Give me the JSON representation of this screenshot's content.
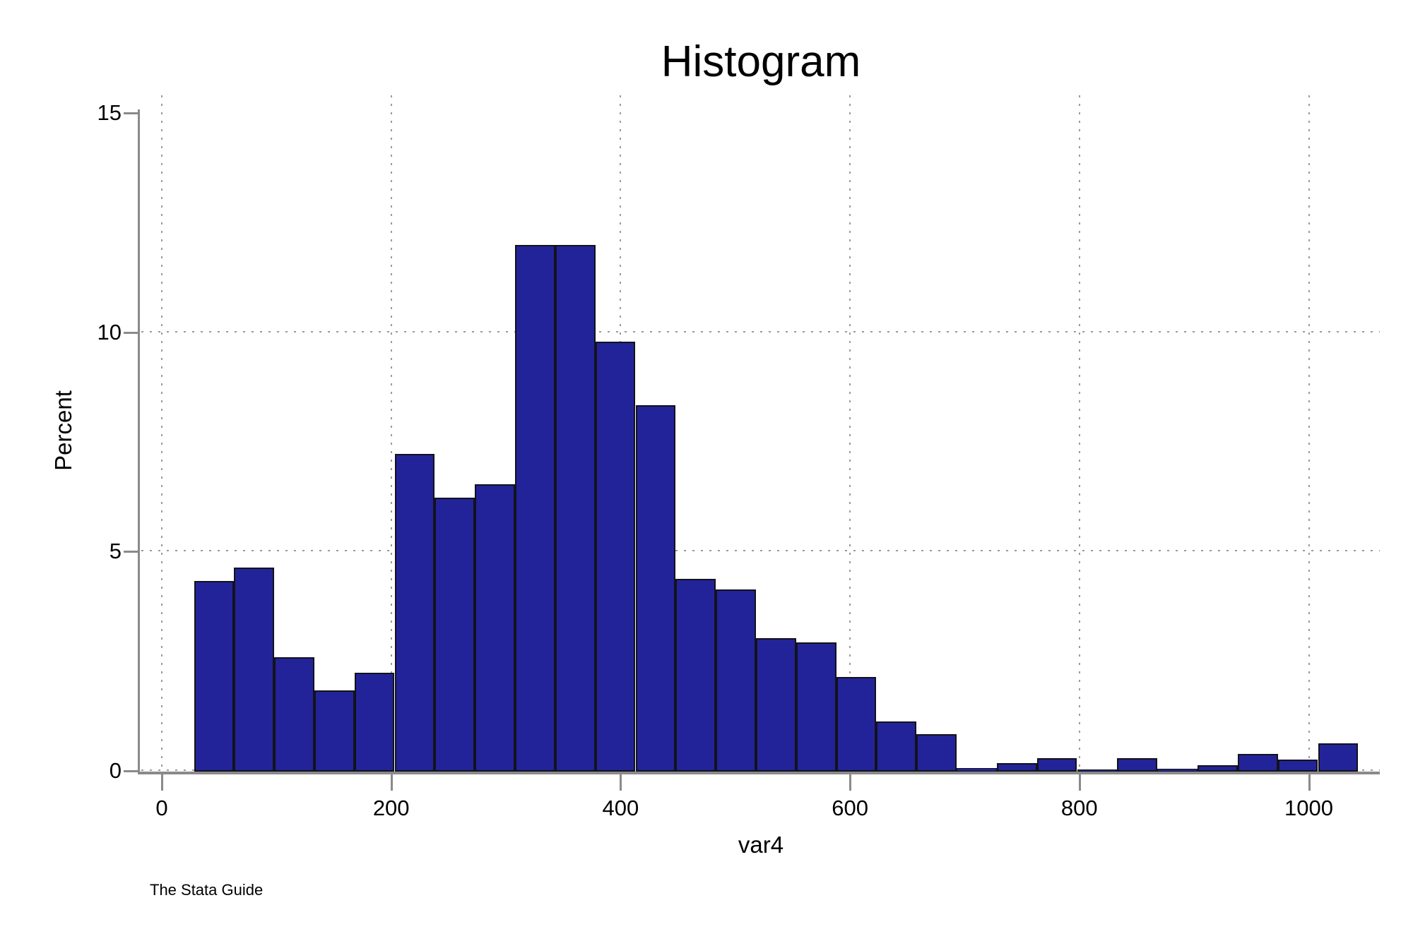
{
  "page": {
    "background": "#ffffff"
  },
  "chart_data": {
    "type": "bar",
    "subtype": "histogram",
    "title": "Histogram",
    "xlabel": "var4",
    "ylabel": "Percent",
    "caption": "The Stata Guide",
    "x_ticks": [
      0,
      200,
      400,
      600,
      800,
      1000
    ],
    "y_ticks": [
      0,
      5,
      10,
      15
    ],
    "ylim": [
      0,
      15
    ],
    "xlim": [
      -20,
      1062
    ],
    "grid": {
      "horizontal_at": [
        0,
        5,
        10
      ],
      "vertical_at": [
        0,
        200,
        400,
        600,
        800,
        1000
      ],
      "style": "dotted"
    },
    "legend": "none",
    "bin_width": 35,
    "bins": [
      {
        "start": 28,
        "percent": 4.35
      },
      {
        "start": 63,
        "percent": 4.65
      },
      {
        "start": 98,
        "percent": 2.6
      },
      {
        "start": 133,
        "percent": 1.85
      },
      {
        "start": 168,
        "percent": 2.25
      },
      {
        "start": 203,
        "percent": 7.25
      },
      {
        "start": 238,
        "percent": 6.25
      },
      {
        "start": 273,
        "percent": 6.55
      },
      {
        "start": 308,
        "percent": 12.0
      },
      {
        "start": 343,
        "percent": 12.0
      },
      {
        "start": 378,
        "percent": 9.8
      },
      {
        "start": 413,
        "percent": 8.35
      },
      {
        "start": 448,
        "percent": 4.4
      },
      {
        "start": 483,
        "percent": 4.15
      },
      {
        "start": 518,
        "percent": 3.05
      },
      {
        "start": 553,
        "percent": 2.95
      },
      {
        "start": 588,
        "percent": 2.15
      },
      {
        "start": 623,
        "percent": 1.15
      },
      {
        "start": 658,
        "percent": 0.85
      },
      {
        "start": 693,
        "percent": 0.08
      },
      {
        "start": 728,
        "percent": 0.2
      },
      {
        "start": 763,
        "percent": 0.3
      },
      {
        "start": 798,
        "percent": 0.05
      },
      {
        "start": 833,
        "percent": 0.3
      },
      {
        "start": 868,
        "percent": 0.07
      },
      {
        "start": 903,
        "percent": 0.15
      },
      {
        "start": 938,
        "percent": 0.4
      },
      {
        "start": 973,
        "percent": 0.27
      },
      {
        "start": 1008,
        "percent": 0.65
      }
    ],
    "colors": {
      "bar_fill": "#232399",
      "bar_border": "#12121c",
      "axis": "#8a8a8a",
      "grid": "#9a9a9a",
      "text": "#000000",
      "background": "#ffffff"
    }
  }
}
